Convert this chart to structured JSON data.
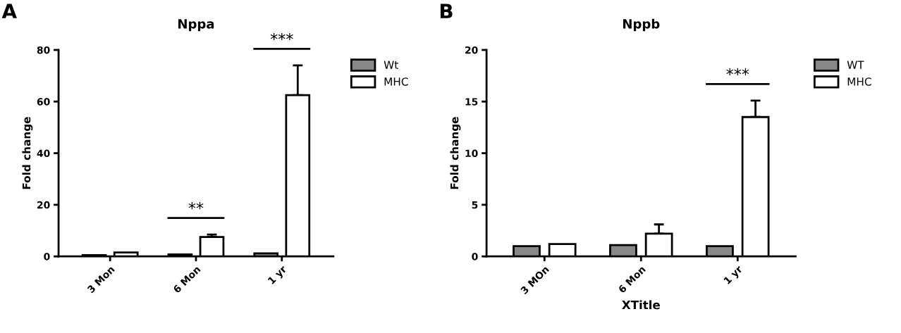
{
  "chart_data": [
    {
      "type": "bar",
      "title": "Nppa",
      "ylabel": "Fold change",
      "categories": [
        "3 Mon",
        "6 Mon",
        "1 yr"
      ],
      "ylim": [
        0,
        80
      ],
      "yticks": [
        0,
        20,
        40,
        60,
        80
      ],
      "legend": "right",
      "grid": false,
      "series": [
        {
          "name": "Wt",
          "color": "#888888",
          "values": [
            0.5,
            0.8,
            1.2
          ]
        },
        {
          "name": "MHC",
          "color": "#ffffff",
          "values": [
            1.5,
            7.5,
            62.5
          ],
          "errors": [
            null,
            [
              7.5,
              8.5
            ],
            [
              62.5,
              74
            ]
          ]
        }
      ],
      "annotations": [
        "A",
        "**",
        "***"
      ]
    },
    {
      "type": "bar",
      "title": "Nppb",
      "ylabel": "Fold change",
      "xlabel": "XTitle",
      "categories": [
        "3 MOn",
        "6 Mon",
        "1 yr"
      ],
      "ylim": [
        0,
        20
      ],
      "yticks": [
        0,
        5,
        10,
        15,
        20
      ],
      "legend": "right",
      "grid": false,
      "series": [
        {
          "name": "WT",
          "color": "#888888",
          "values": [
            1.0,
            1.1,
            1.0
          ]
        },
        {
          "name": "MHC",
          "color": "#ffffff",
          "values": [
            1.2,
            2.2,
            13.5
          ],
          "errors": [
            null,
            [
              2.2,
              3.1
            ],
            [
              13.5,
              15.1
            ]
          ]
        }
      ],
      "annotations": [
        "B",
        "***"
      ]
    }
  ]
}
